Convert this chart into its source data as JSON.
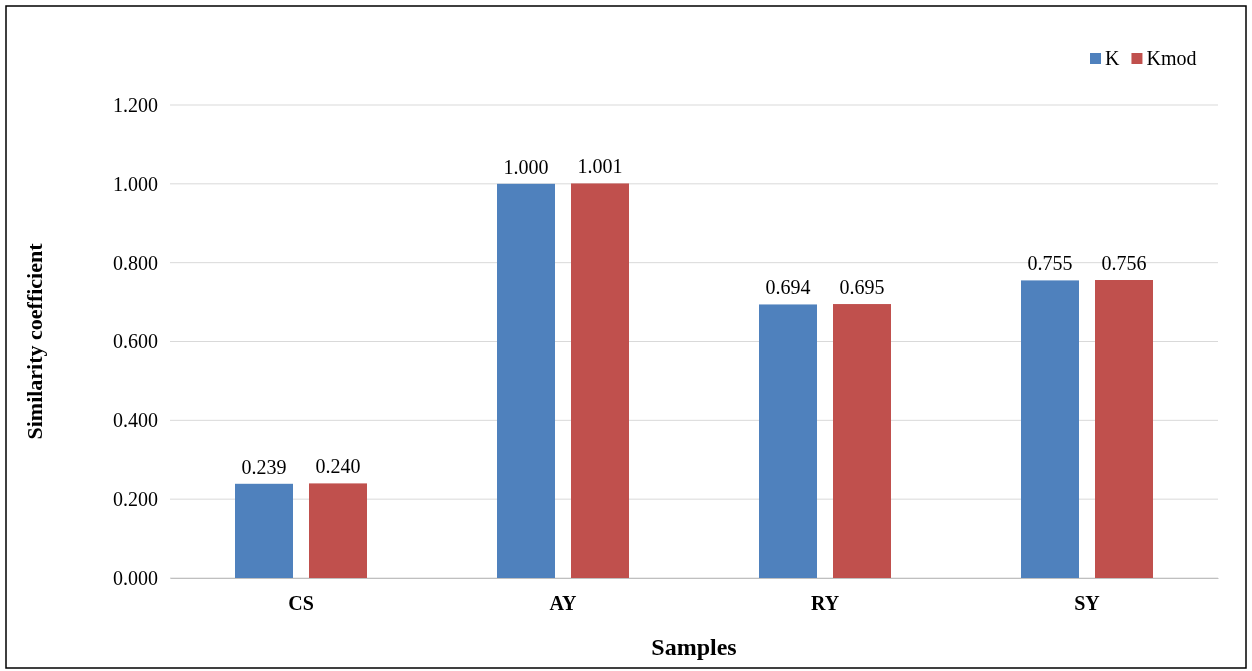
{
  "chart_data": {
    "type": "bar",
    "xlabel": "Samples",
    "ylabel": "Similarity coefficient",
    "categories": [
      "CS",
      "AY",
      "RY",
      "SY"
    ],
    "series": [
      {
        "name": "K",
        "color": "#4f81bd",
        "values": [
          0.239,
          1.0,
          0.694,
          0.755
        ],
        "value_labels": [
          "0.239",
          "1.000",
          "0.694",
          "0.755"
        ]
      },
      {
        "name": "Kmod",
        "color": "#c0504d",
        "values": [
          0.24,
          1.001,
          0.695,
          0.756
        ],
        "value_labels": [
          "0.240",
          "1.001",
          "0.695",
          "0.756"
        ]
      }
    ],
    "ylim": [
      0,
      1.2
    ],
    "yticks": [
      {
        "value": 0,
        "label": "0.000"
      },
      {
        "value": 0.2,
        "label": "0.200"
      },
      {
        "value": 0.4,
        "label": "0.400"
      },
      {
        "value": 0.6,
        "label": "0.600"
      },
      {
        "value": 0.8,
        "label": "0.800"
      },
      {
        "value": 1,
        "label": "1.000"
      },
      {
        "value": 1.2,
        "label": "1.200"
      }
    ],
    "grid": "y",
    "legend": "top right"
  }
}
